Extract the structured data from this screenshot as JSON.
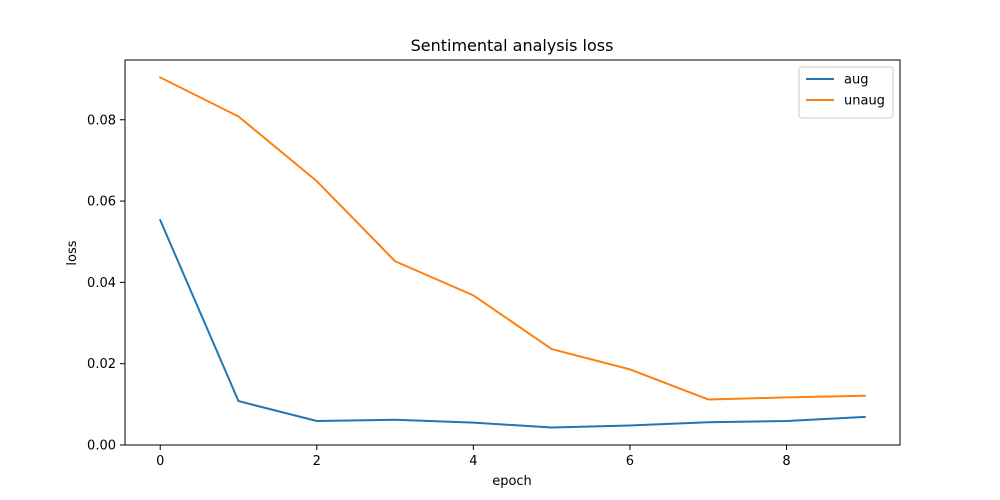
{
  "chart_data": {
    "type": "line",
    "title": "Sentimental analysis loss",
    "xlabel": "epoch",
    "ylabel": "loss",
    "xlim": [
      -0.45,
      9.45
    ],
    "ylim": [
      0,
      0.0947
    ],
    "xticks": [
      0,
      2,
      4,
      6,
      8
    ],
    "yticks": [
      0.0,
      0.02,
      0.04,
      0.06,
      0.08
    ],
    "ytick_labels": [
      "0.00",
      "0.02",
      "0.04",
      "0.06",
      "0.08"
    ],
    "x": [
      0,
      1,
      2,
      3,
      4,
      5,
      6,
      7,
      8,
      9
    ],
    "series": [
      {
        "name": "aug",
        "color": "#1f77b4",
        "values": [
          0.0553,
          0.0108,
          0.0059,
          0.0062,
          0.0055,
          0.0043,
          0.0048,
          0.0056,
          0.0059,
          0.0069
        ]
      },
      {
        "name": "unaug",
        "color": "#ff7f0e",
        "values": [
          0.0904,
          0.0808,
          0.0649,
          0.0452,
          0.0368,
          0.0236,
          0.0186,
          0.0112,
          0.0117,
          0.0121
        ]
      }
    ],
    "grid": false,
    "legend_position": "top-right"
  }
}
